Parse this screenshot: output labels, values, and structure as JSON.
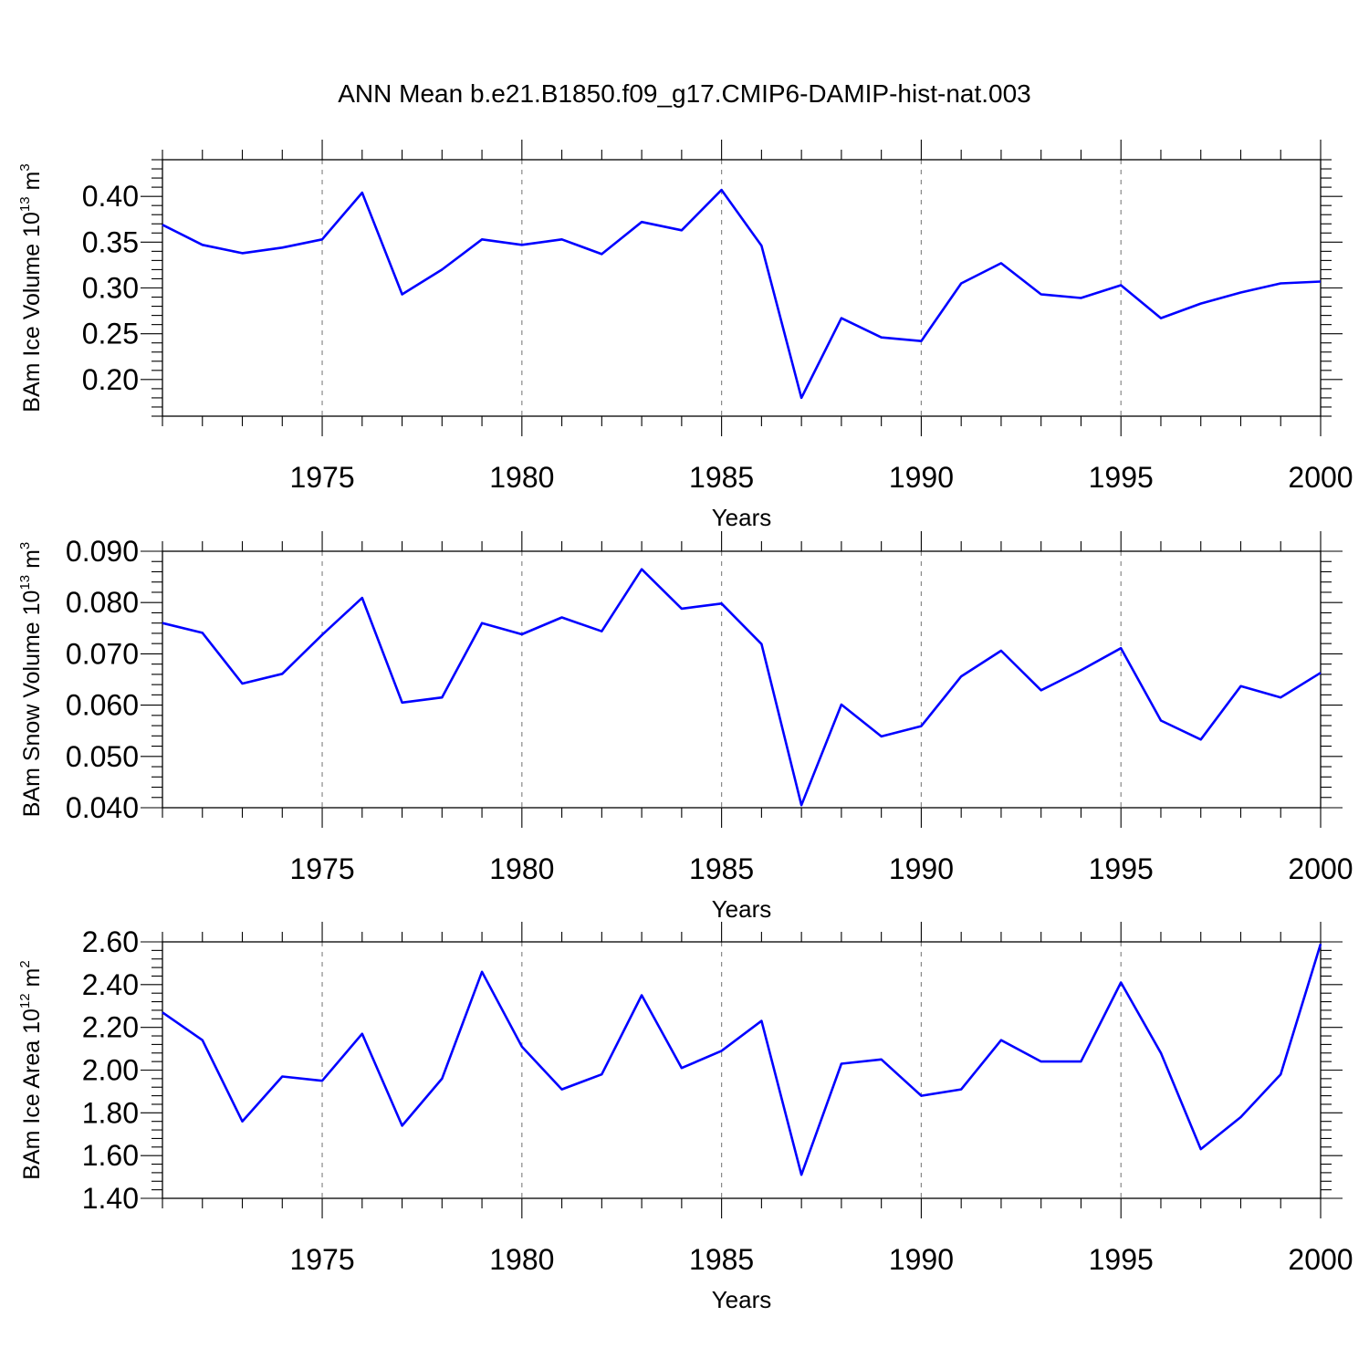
{
  "title": "ANN Mean b.e21.B1850.f09_g17.CMIP6-DAMIP-hist-nat.003",
  "colors": {
    "series": "#0000ff",
    "grid": "#888888",
    "axis": "#000000"
  },
  "chart_data": [
    {
      "type": "line",
      "xlabel": "Years",
      "ylabel": {
        "text": "BAm Ice Volume 10",
        "sup": "13",
        "unit": " m",
        "unit_sup": "3"
      },
      "xlim": [
        1971,
        2000
      ],
      "ylim": [
        0.16,
        0.44
      ],
      "x_major_ticks": [
        1975,
        1980,
        1985,
        1990,
        1995,
        2000
      ],
      "x_tick_labels": [
        "1975",
        "1980",
        "1985",
        "1990",
        "1995",
        "2000"
      ],
      "y_major_ticks": [
        0.2,
        0.25,
        0.3,
        0.35,
        0.4
      ],
      "y_tick_labels": [
        "0.20",
        "0.25",
        "0.30",
        "0.35",
        "0.40"
      ],
      "grid": "vertical dashed at major x ticks",
      "series": [
        {
          "x": [
            1971,
            1972,
            1973,
            1974,
            1975,
            1976,
            1977,
            1978,
            1979,
            1980,
            1981,
            1982,
            1983,
            1984,
            1985,
            1986,
            1987,
            1988,
            1989,
            1990,
            1991,
            1992,
            1993,
            1994,
            1995,
            1996,
            1997,
            1998,
            1999,
            2000
          ],
          "values": [
            0.369,
            0.347,
            0.338,
            0.344,
            0.353,
            0.404,
            0.293,
            0.32,
            0.353,
            0.347,
            0.353,
            0.337,
            0.372,
            0.363,
            0.407,
            0.346,
            0.18,
            0.267,
            0.246,
            0.242,
            0.305,
            0.327,
            0.293,
            0.289,
            0.303,
            0.267,
            0.283,
            0.295,
            0.305,
            0.307
          ]
        }
      ]
    },
    {
      "type": "line",
      "xlabel": "Years",
      "ylabel": {
        "text": "BAm Snow Volume 10",
        "sup": "13",
        "unit": " m",
        "unit_sup": "3"
      },
      "xlim": [
        1971,
        2000
      ],
      "ylim": [
        0.04,
        0.09
      ],
      "x_major_ticks": [
        1975,
        1980,
        1985,
        1990,
        1995,
        2000
      ],
      "x_tick_labels": [
        "1975",
        "1980",
        "1985",
        "1990",
        "1995",
        "2000"
      ],
      "y_major_ticks": [
        0.04,
        0.05,
        0.06,
        0.07,
        0.08,
        0.09
      ],
      "y_tick_labels": [
        "0.040",
        "0.050",
        "0.060",
        "0.070",
        "0.080",
        "0.090"
      ],
      "grid": "vertical dashed at major x ticks",
      "series": [
        {
          "x": [
            1971,
            1972,
            1973,
            1974,
            1975,
            1976,
            1977,
            1978,
            1979,
            1980,
            1981,
            1982,
            1983,
            1984,
            1985,
            1986,
            1987,
            1988,
            1989,
            1990,
            1991,
            1992,
            1993,
            1994,
            1995,
            1996,
            1997,
            1998,
            1999,
            2000
          ],
          "values": [
            0.076,
            0.0741,
            0.0642,
            0.0661,
            0.0737,
            0.0809,
            0.0605,
            0.0615,
            0.076,
            0.0738,
            0.0771,
            0.0744,
            0.0865,
            0.0788,
            0.0798,
            0.0719,
            0.0405,
            0.0601,
            0.0539,
            0.0559,
            0.0656,
            0.0706,
            0.0629,
            0.0668,
            0.0711,
            0.057,
            0.0533,
            0.0637,
            0.0615,
            0.0663
          ]
        }
      ]
    },
    {
      "type": "line",
      "xlabel": "Years",
      "ylabel": {
        "text": "BAm Ice Area 10",
        "sup": "12",
        "unit": " m",
        "unit_sup": "2"
      },
      "xlim": [
        1971,
        2000
      ],
      "ylim": [
        1.4,
        2.6
      ],
      "x_major_ticks": [
        1975,
        1980,
        1985,
        1990,
        1995,
        2000
      ],
      "x_tick_labels": [
        "1975",
        "1980",
        "1985",
        "1990",
        "1995",
        "2000"
      ],
      "y_major_ticks": [
        1.4,
        1.6,
        1.8,
        2.0,
        2.2,
        2.4,
        2.6
      ],
      "y_tick_labels": [
        "1.40",
        "1.60",
        "1.80",
        "2.00",
        "2.20",
        "2.40",
        "2.60"
      ],
      "grid": "vertical dashed at major x ticks",
      "series": [
        {
          "x": [
            1971,
            1972,
            1973,
            1974,
            1975,
            1976,
            1977,
            1978,
            1979,
            1980,
            1981,
            1982,
            1983,
            1984,
            1985,
            1986,
            1987,
            1988,
            1989,
            1990,
            1991,
            1992,
            1993,
            1994,
            1995,
            1996,
            1997,
            1998,
            1999,
            2000
          ],
          "values": [
            2.27,
            2.14,
            1.76,
            1.97,
            1.95,
            2.17,
            1.74,
            1.96,
            2.46,
            2.11,
            1.91,
            1.98,
            2.35,
            2.01,
            2.09,
            2.23,
            1.51,
            2.03,
            2.05,
            1.88,
            1.91,
            2.14,
            2.04,
            2.04,
            2.41,
            2.08,
            1.63,
            1.78,
            1.98,
            2.59
          ]
        }
      ]
    }
  ]
}
